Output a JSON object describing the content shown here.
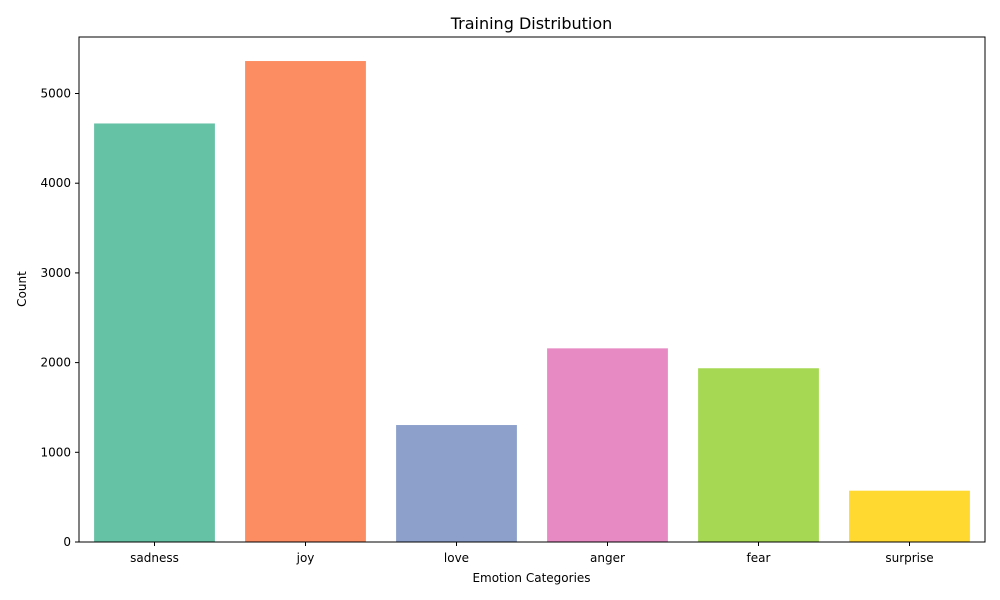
{
  "chart_data": {
    "type": "bar",
    "title": "Training Distribution",
    "xlabel": "Emotion Categories",
    "ylabel": "Count",
    "categories": [
      "sadness",
      "joy",
      "love",
      "anger",
      "fear",
      "surprise"
    ],
    "values": [
      4666,
      5362,
      1304,
      2159,
      1937,
      572
    ],
    "colors": [
      "#66c2a5",
      "#fc8d62",
      "#8da0cb",
      "#e78ac3",
      "#a6d854",
      "#ffd92f"
    ],
    "ylim": [
      0,
      5630
    ],
    "yticks": [
      0,
      1000,
      2000,
      3000,
      4000,
      5000
    ],
    "grid": false,
    "legend": false
  }
}
